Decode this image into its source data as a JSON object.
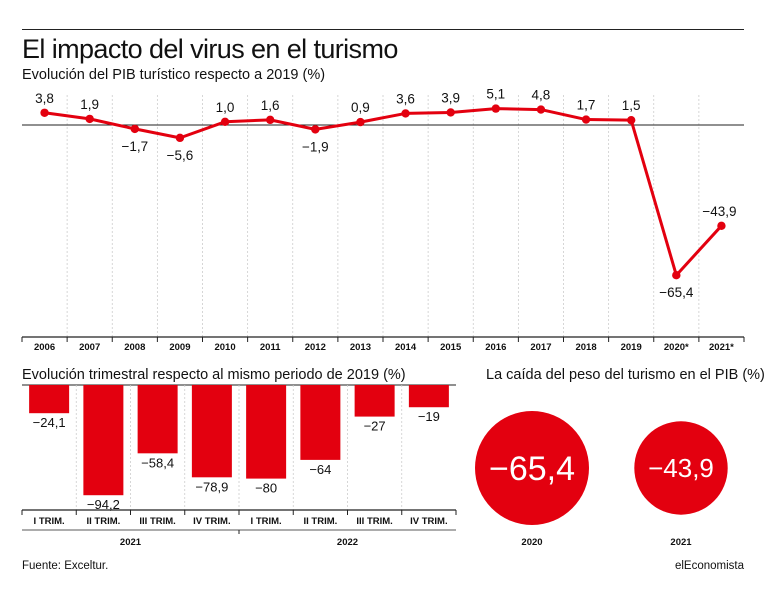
{
  "title": "El impacto del virus en el turismo",
  "subtitle": "Evolución del PIB turístico respecto a 2019 (%)",
  "source": "Fuente: Exceltur.",
  "brand": "elEconomista",
  "colors": {
    "accent": "#e3000f",
    "axis": "#222222",
    "grid": "#cccccc"
  },
  "chart_data": [
    {
      "type": "line",
      "x": [
        "2006",
        "2007",
        "2008",
        "2009",
        "2010",
        "2011",
        "2012",
        "2013",
        "2014",
        "2015",
        "2016",
        "2017",
        "2018",
        "2019",
        "2020*",
        "2021*"
      ],
      "values": [
        3.8,
        1.9,
        -1.7,
        -5.6,
        1.0,
        1.6,
        -1.9,
        0.9,
        3.6,
        3.9,
        5.1,
        4.8,
        1.7,
        1.5,
        -65.4,
        -43.9
      ],
      "value_labels": [
        "3,8",
        "1,9",
        "−1,7",
        "−5,6",
        "1,0",
        "1,6",
        "−1,9",
        "0,9",
        "3,6",
        "3,9",
        "5,1",
        "4,8",
        "1,7",
        "1,5",
        "−65,4",
        "−43,9"
      ],
      "ylim": [
        -72,
        8
      ],
      "grid": true
    },
    {
      "type": "bar",
      "title": "Evolución trimestral respecto al mismo periodo de 2019 (%)",
      "categories": [
        "I TRIM.",
        "II TRIM.",
        "III TRIM.",
        "IV TRIM.",
        "I TRIM.",
        "II TRIM.",
        "III TRIM.",
        "IV TRIM."
      ],
      "groups": [
        {
          "label": "2021",
          "count": 4
        },
        {
          "label": "2022",
          "count": 4
        }
      ],
      "values": [
        -24.1,
        -94.2,
        -58.4,
        -78.9,
        -80,
        -64,
        -27,
        -19
      ],
      "value_labels": [
        "−24,1",
        "−94,2",
        "−58,4",
        "−78,9",
        "−80",
        "−64",
        "−27",
        "−19"
      ],
      "ylim": [
        -100,
        0
      ]
    },
    {
      "type": "bubble",
      "title": "La caída del peso del turismo en el PIB (%)",
      "categories": [
        "2020",
        "2021"
      ],
      "values": [
        -65.4,
        -43.9
      ],
      "value_labels": [
        "−65,4",
        "−43,9"
      ]
    }
  ]
}
